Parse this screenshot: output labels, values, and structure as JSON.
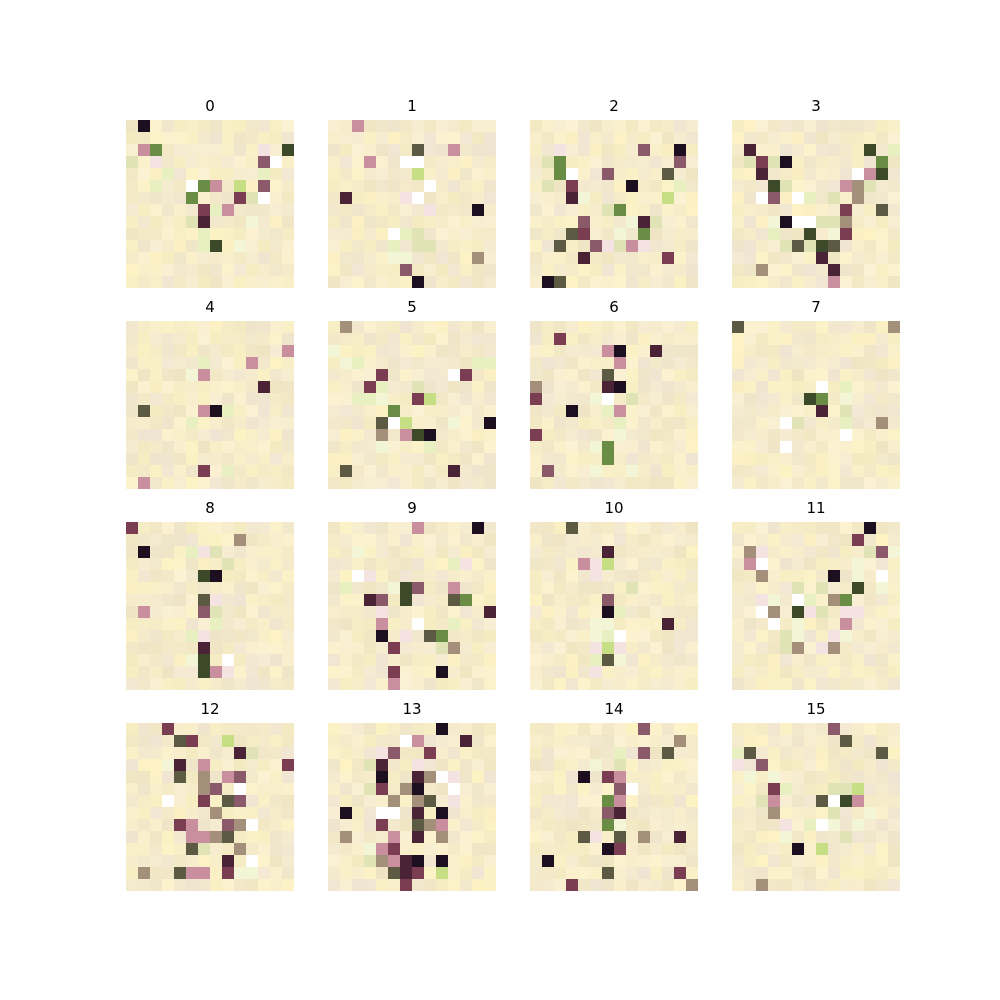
{
  "figure": {
    "type": "image_grid",
    "rows": 4,
    "cols": 4,
    "panel_titles": [
      "0",
      "1",
      "2",
      "3",
      "4",
      "5",
      "6",
      "7",
      "8",
      "9",
      "10",
      "11",
      "12",
      "13",
      "14",
      "15"
    ],
    "background_color": "#f6eccb",
    "dark_colors": [
      "#1c0f1f",
      "#4a2436",
      "#7a3d52",
      "#8a5a6a",
      "#5d5a44",
      "#a38f7a",
      "#c98f9f"
    ],
    "light_colors": [
      "#e8efc0",
      "#f2f6d6",
      "#ffffff",
      "#dfe3b6",
      "#f4e3e0"
    ],
    "accent_colors": [
      "#6a8d46",
      "#c6de84",
      "#3c4a2a"
    ]
  }
}
